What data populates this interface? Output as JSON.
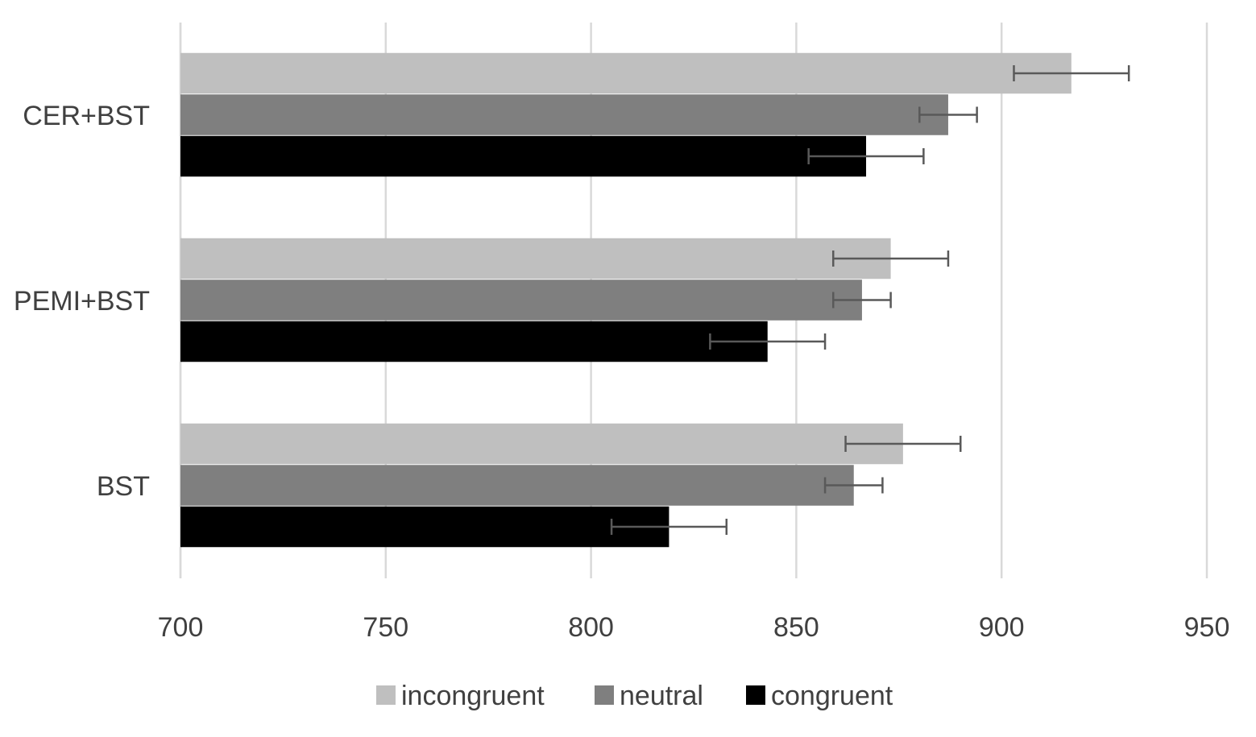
{
  "chart_data": {
    "type": "bar",
    "orientation": "horizontal",
    "title": "",
    "xlabel": "",
    "ylabel": "",
    "xlim": [
      700,
      950
    ],
    "x_ticks": [
      700,
      750,
      800,
      850,
      900,
      950
    ],
    "x_tick_labels": [
      "700",
      "750",
      "800",
      "850",
      "900",
      "950"
    ],
    "grid": true,
    "legend_position": "bottom",
    "categories": [
      "CER+BST",
      "PEMI+BST",
      "BST"
    ],
    "series": [
      {
        "name": "incongruent",
        "color": "#bfbfbf",
        "values": [
          917,
          873,
          876
        ],
        "error": [
          14,
          14,
          14
        ]
      },
      {
        "name": "neutral",
        "color": "#7f7f7f",
        "values": [
          887,
          866,
          864
        ],
        "error": [
          7,
          7,
          7
        ]
      },
      {
        "name": "congruent",
        "color": "#000000",
        "values": [
          867,
          843,
          819
        ],
        "error": [
          14,
          14,
          14
        ]
      }
    ]
  }
}
